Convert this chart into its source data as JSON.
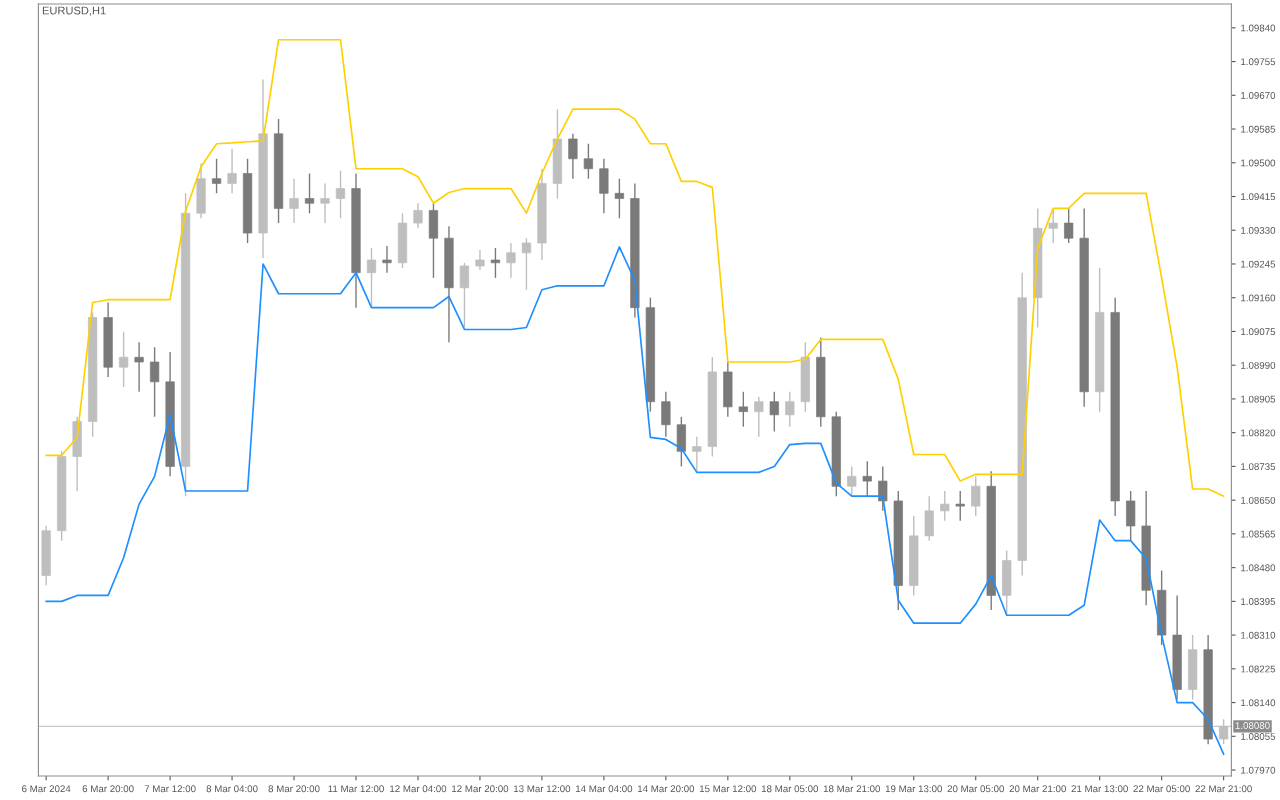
{
  "chart_data": {
    "type": "candlestick",
    "annotations": [
      "EURUSD,H1"
    ],
    "ohlc": [
      [
        1.0846,
        1.08585,
        1.08435,
        1.08573
      ],
      [
        1.08573,
        1.08773,
        1.08548,
        1.0876
      ],
      [
        1.0876,
        1.0886,
        1.08673,
        1.08848
      ],
      [
        1.08848,
        1.09123,
        1.0881,
        1.0911
      ],
      [
        1.0911,
        1.09148,
        1.0896,
        1.08985
      ],
      [
        1.08985,
        1.09073,
        1.08935,
        1.0901
      ],
      [
        1.0901,
        1.09048,
        1.08923,
        1.08998
      ],
      [
        1.08998,
        1.09035,
        1.0886,
        1.08948
      ],
      [
        1.08948,
        1.09023,
        1.0871,
        1.08735
      ],
      [
        1.08735,
        1.09423,
        1.0866,
        1.09373
      ],
      [
        1.09373,
        1.09498,
        1.0936,
        1.0946
      ],
      [
        1.0946,
        1.0951,
        1.09423,
        1.09448
      ],
      [
        1.09448,
        1.09535,
        1.09423,
        1.09473
      ],
      [
        1.09473,
        1.0951,
        1.09298,
        1.09323
      ],
      [
        1.09323,
        1.0971,
        1.0926,
        1.09573
      ],
      [
        1.09573,
        1.0961,
        1.09348,
        1.09385
      ],
      [
        1.09385,
        1.0946,
        1.09348,
        1.0941
      ],
      [
        1.0941,
        1.09473,
        1.09373,
        1.09398
      ],
      [
        1.09398,
        1.09448,
        1.09348,
        1.0941
      ],
      [
        1.0941,
        1.0948,
        1.0936,
        1.09435
      ],
      [
        1.09435,
        1.09473,
        1.09135,
        1.09223
      ],
      [
        1.09223,
        1.09285,
        1.09135,
        1.09255
      ],
      [
        1.09255,
        1.0929,
        1.09223,
        1.09248
      ],
      [
        1.09248,
        1.09373,
        1.09235,
        1.09348
      ],
      [
        1.09348,
        1.09398,
        1.09335,
        1.0938
      ],
      [
        1.0938,
        1.09398,
        1.0921,
        1.0931
      ],
      [
        1.0931,
        1.0934,
        1.09048,
        1.09185
      ],
      [
        1.09185,
        1.09248,
        1.09085,
        1.0924
      ],
      [
        1.0924,
        1.0928,
        1.0923,
        1.09255
      ],
      [
        1.09255,
        1.09285,
        1.0921,
        1.09248
      ],
      [
        1.09248,
        1.09298,
        1.0921,
        1.09273
      ],
      [
        1.09273,
        1.0931,
        1.0918,
        1.09298
      ],
      [
        1.09298,
        1.09485,
        1.09255,
        1.09448
      ],
      [
        1.09448,
        1.09635,
        1.0941,
        1.0956
      ],
      [
        1.0956,
        1.09573,
        1.0946,
        1.0951
      ],
      [
        1.0951,
        1.09548,
        1.0946,
        1.09485
      ],
      [
        1.09485,
        1.0951,
        1.09373,
        1.09423
      ],
      [
        1.09423,
        1.0946,
        1.0936,
        1.0941
      ],
      [
        1.0941,
        1.09448,
        1.0911,
        1.09135
      ],
      [
        1.09135,
        1.0916,
        1.08873,
        1.08898
      ],
      [
        1.08898,
        1.08923,
        1.0881,
        1.0884
      ],
      [
        1.0884,
        1.0886,
        1.08735,
        1.08773
      ],
      [
        1.08773,
        1.0881,
        1.08723,
        1.08785
      ],
      [
        1.08785,
        1.0901,
        1.0876,
        1.08973
      ],
      [
        1.08973,
        1.08998,
        1.0886,
        1.08885
      ],
      [
        1.08885,
        1.08923,
        1.08835,
        1.08873
      ],
      [
        1.08873,
        1.0891,
        1.0881,
        1.08898
      ],
      [
        1.08898,
        1.08923,
        1.08823,
        1.08865
      ],
      [
        1.08865,
        1.08923,
        1.08835,
        1.08898
      ],
      [
        1.08898,
        1.09048,
        1.08873,
        1.0901
      ],
      [
        1.0901,
        1.0906,
        1.08835,
        1.0886
      ],
      [
        1.0886,
        1.08873,
        1.0866,
        1.08685
      ],
      [
        1.08685,
        1.08735,
        1.0866,
        1.0871
      ],
      [
        1.0871,
        1.08748,
        1.0866,
        1.08698
      ],
      [
        1.08698,
        1.08735,
        1.08623,
        1.08648
      ],
      [
        1.08648,
        1.08673,
        1.08373,
        1.08435
      ],
      [
        1.08435,
        1.0861,
        1.0841,
        1.0856
      ],
      [
        1.0856,
        1.0866,
        1.08548,
        1.08623
      ],
      [
        1.08623,
        1.08673,
        1.08598,
        1.0864
      ],
      [
        1.0864,
        1.08673,
        1.08598,
        1.08635
      ],
      [
        1.08635,
        1.0871,
        1.0861,
        1.08685
      ],
      [
        1.08685,
        1.08723,
        1.08373,
        1.0841
      ],
      [
        1.0841,
        1.08523,
        1.0836,
        1.08498
      ],
      [
        1.08498,
        1.09223,
        1.0846,
        1.0916
      ],
      [
        1.0916,
        1.09385,
        1.09085,
        1.09335
      ],
      [
        1.09335,
        1.09385,
        1.09298,
        1.09348
      ],
      [
        1.09348,
        1.09385,
        1.09298,
        1.0931
      ],
      [
        1.0931,
        1.09385,
        1.08885,
        1.08923
      ],
      [
        1.08923,
        1.09235,
        1.08873,
        1.09123
      ],
      [
        1.09123,
        1.0916,
        1.0861,
        1.08648
      ],
      [
        1.08648,
        1.08673,
        1.08548,
        1.08585
      ],
      [
        1.08585,
        1.08673,
        1.08385,
        1.08423
      ],
      [
        1.08423,
        1.08473,
        1.08285,
        1.0831
      ],
      [
        1.0831,
        1.0841,
        1.08148,
        1.08173
      ],
      [
        1.08173,
        1.0831,
        1.08148,
        1.08273
      ],
      [
        1.08273,
        1.0831,
        1.08035,
        1.08048
      ],
      [
        1.08048,
        1.08098,
        1.08035,
        1.0808
      ]
    ],
    "colors": [
      "#bebebe",
      "#bebebe",
      "#bebebe",
      "#bebebe",
      "#7a7a7a",
      "#bebebe",
      "#7a7a7a",
      "#7a7a7a",
      "#7a7a7a",
      "#bebebe",
      "#bebebe",
      "#7a7a7a",
      "#bebebe",
      "#7a7a7a",
      "#bebebe",
      "#7a7a7a",
      "#bebebe",
      "#7a7a7a",
      "#bebebe",
      "#bebebe",
      "#7a7a7a",
      "#bebebe",
      "#7a7a7a",
      "#bebebe",
      "#bebebe",
      "#7a7a7a",
      "#7a7a7a",
      "#bebebe",
      "#bebebe",
      "#7a7a7a",
      "#bebebe",
      "#bebebe",
      "#bebebe",
      "#bebebe",
      "#7a7a7a",
      "#7a7a7a",
      "#7a7a7a",
      "#7a7a7a",
      "#7a7a7a",
      "#7a7a7a",
      "#7a7a7a",
      "#7a7a7a",
      "#bebebe",
      "#bebebe",
      "#7a7a7a",
      "#7a7a7a",
      "#bebebe",
      "#7a7a7a",
      "#bebebe",
      "#bebebe",
      "#7a7a7a",
      "#7a7a7a",
      "#bebebe",
      "#7a7a7a",
      "#7a7a7a",
      "#7a7a7a",
      "#bebebe",
      "#bebebe",
      "#bebebe",
      "#7a7a7a",
      "#bebebe",
      "#7a7a7a",
      "#bebebe",
      "#bebebe",
      "#bebebe",
      "#bebebe",
      "#7a7a7a",
      "#7a7a7a",
      "#bebebe",
      "#7a7a7a",
      "#7a7a7a",
      "#7a7a7a",
      "#7a7a7a",
      "#7a7a7a",
      "#bebebe",
      "#7a7a7a",
      "#bebebe"
    ],
    "series": [
      {
        "type": "line",
        "color": "#ffd000",
        "values": [
          1.08763,
          1.08763,
          1.08808,
          1.09148,
          1.09155,
          1.09155,
          1.09155,
          1.09155,
          1.09155,
          1.09378,
          1.0949,
          1.09548,
          1.0955,
          1.09553,
          1.09555,
          1.0981,
          1.0981,
          1.0981,
          1.0981,
          1.0981,
          1.09485,
          1.09485,
          1.09485,
          1.09485,
          1.09465,
          1.09398,
          1.09425,
          1.09435,
          1.09435,
          1.09435,
          1.09435,
          1.09373,
          1.09473,
          1.0956,
          1.09635,
          1.09635,
          1.09635,
          1.09635,
          1.0961,
          1.09548,
          1.09548,
          1.09453,
          1.09453,
          1.09438,
          1.08998,
          1.08998,
          1.08998,
          1.08998,
          1.08998,
          1.09005,
          1.09055,
          1.09055,
          1.09055,
          1.09055,
          1.09055,
          1.08955,
          1.08765,
          1.08765,
          1.08765,
          1.08698,
          1.08715,
          1.08715,
          1.08715,
          1.08715,
          1.09285,
          1.09385,
          1.09385,
          1.09423,
          1.09423,
          1.09423,
          1.09423,
          1.09423,
          1.0921,
          1.08985,
          1.08678,
          1.08678,
          1.0866
        ]
      },
      {
        "type": "line",
        "color": "#1e8fff",
        "values": [
          1.08395,
          1.08395,
          1.0841,
          1.0841,
          1.0841,
          1.08505,
          1.0864,
          1.0871,
          1.08865,
          1.08673,
          1.08673,
          1.08673,
          1.08673,
          1.08673,
          1.09245,
          1.0917,
          1.0917,
          1.0917,
          1.0917,
          1.0917,
          1.09223,
          1.09135,
          1.09135,
          1.09135,
          1.09135,
          1.09135,
          1.09163,
          1.0908,
          1.0908,
          1.0908,
          1.0908,
          1.09085,
          1.0918,
          1.0919,
          1.0919,
          1.0919,
          1.0919,
          1.09288,
          1.09203,
          1.08808,
          1.08803,
          1.0878,
          1.0872,
          1.0872,
          1.0872,
          1.0872,
          1.0872,
          1.08735,
          1.0879,
          1.08793,
          1.08793,
          1.08693,
          1.0866,
          1.0866,
          1.0866,
          1.08398,
          1.0834,
          1.0834,
          1.0834,
          1.0834,
          1.08388,
          1.0846,
          1.0836,
          1.0836,
          1.0836,
          1.0836,
          1.0836,
          1.08385,
          1.086,
          1.08548,
          1.08548,
          1.08503,
          1.0831,
          1.0814,
          1.0814,
          1.08098,
          1.0801
        ]
      }
    ],
    "ref_lines": [
      {
        "axis": "y",
        "value": 1.0808,
        "label": "1.08080",
        "color": "#c8c8c8"
      }
    ],
    "categories": [
      "6 Mar 2024",
      null,
      null,
      null,
      "6 Mar 20:00",
      null,
      null,
      null,
      "7 Mar 12:00",
      null,
      null,
      null,
      "8 Mar 04:00",
      null,
      null,
      null,
      "8 Mar 20:00",
      null,
      null,
      null,
      "11 Mar 12:00",
      null,
      null,
      null,
      "12 Mar 04:00",
      null,
      null,
      null,
      "12 Mar 20:00",
      null,
      null,
      null,
      "13 Mar 12:00",
      null,
      null,
      null,
      "14 Mar 04:00",
      null,
      null,
      null,
      "14 Mar 20:00",
      null,
      null,
      null,
      "15 Mar 12:00",
      null,
      null,
      null,
      "18 Mar 05:00",
      null,
      null,
      null,
      "18 Mar 21:00",
      null,
      null,
      null,
      "19 Mar 13:00",
      null,
      null,
      null,
      "20 Mar 05:00",
      null,
      null,
      null,
      "20 Mar 21:00",
      null,
      null,
      null,
      "21 Mar 13:00",
      null,
      null,
      null,
      "22 Mar 05:00",
      null,
      null,
      null,
      "22 Mar 21:00"
    ],
    "ylim": [
      1.07955,
      1.099
    ],
    "yticks": [
      {
        "value": 1.0984,
        "label": "1.09840"
      },
      {
        "value": 1.09755,
        "label": "1.09755"
      },
      {
        "value": 1.0967,
        "label": "1.09670"
      },
      {
        "value": 1.09585,
        "label": "1.09585"
      },
      {
        "value": 1.095,
        "label": "1.09500"
      },
      {
        "value": 1.09415,
        "label": "1.09415"
      },
      {
        "value": 1.0933,
        "label": "1.09330"
      },
      {
        "value": 1.09245,
        "label": "1.09245"
      },
      {
        "value": 1.0916,
        "label": "1.09160"
      },
      {
        "value": 1.09075,
        "label": "1.09075"
      },
      {
        "value": 1.0899,
        "label": "1.08990"
      },
      {
        "value": 1.08905,
        "label": "1.08905"
      },
      {
        "value": 1.0882,
        "label": "1.08820"
      },
      {
        "value": 1.08735,
        "label": "1.08735"
      },
      {
        "value": 1.0865,
        "label": "1.08650"
      },
      {
        "value": 1.08565,
        "label": "1.08565"
      },
      {
        "value": 1.0848,
        "label": "1.08480"
      },
      {
        "value": 1.08395,
        "label": "1.08395"
      },
      {
        "value": 1.0831,
        "label": "1.08310"
      },
      {
        "value": 1.08225,
        "label": "1.08225"
      },
      {
        "value": 1.0814,
        "label": "1.08140"
      },
      {
        "value": 1.08055,
        "label": "1.08055"
      },
      {
        "value": 1.0797,
        "label": "1.07970"
      }
    ],
    "grid": false
  }
}
